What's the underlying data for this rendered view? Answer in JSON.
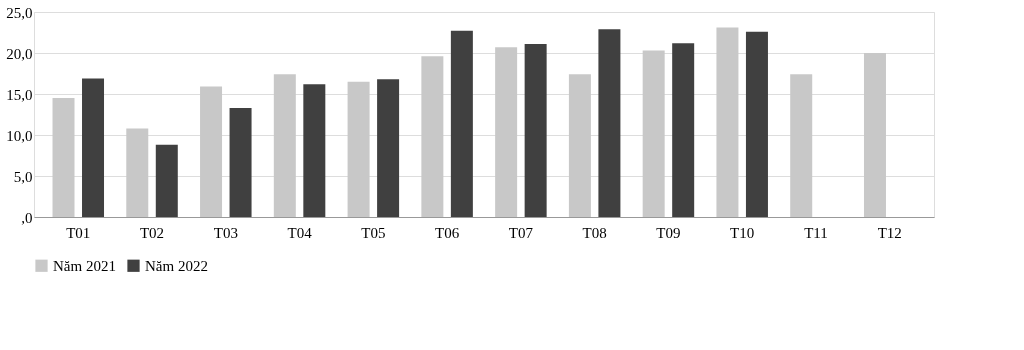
{
  "chart_data": {
    "type": "bar",
    "categories": [
      "T01",
      "T02",
      "T03",
      "T04",
      "T05",
      "T06",
      "T07",
      "T08",
      "T09",
      "T10",
      "T11",
      "T12"
    ],
    "series": [
      {
        "name": "Năm 2021",
        "color": "#c8c8c8",
        "values": [
          14.5,
          10.8,
          15.9,
          17.4,
          16.5,
          19.6,
          20.7,
          17.4,
          20.3,
          23.1,
          17.4,
          20.0
        ]
      },
      {
        "name": "Năm 2022",
        "color": "#404040",
        "values": [
          16.9,
          8.8,
          13.3,
          16.2,
          16.8,
          22.7,
          21.1,
          22.9,
          21.2,
          22.6,
          0,
          0
        ]
      }
    ],
    "ylim": [
      0,
      25
    ],
    "yticks": [
      {
        "value": 0,
        "label": ",0"
      },
      {
        "value": 5,
        "label": "5,0"
      },
      {
        "value": 10,
        "label": "10,0"
      },
      {
        "value": 15,
        "label": "15,0"
      },
      {
        "value": 20,
        "label": "20,0"
      },
      {
        "value": 25,
        "label": "25,0"
      }
    ],
    "grid": "y",
    "legend": "bottom"
  }
}
